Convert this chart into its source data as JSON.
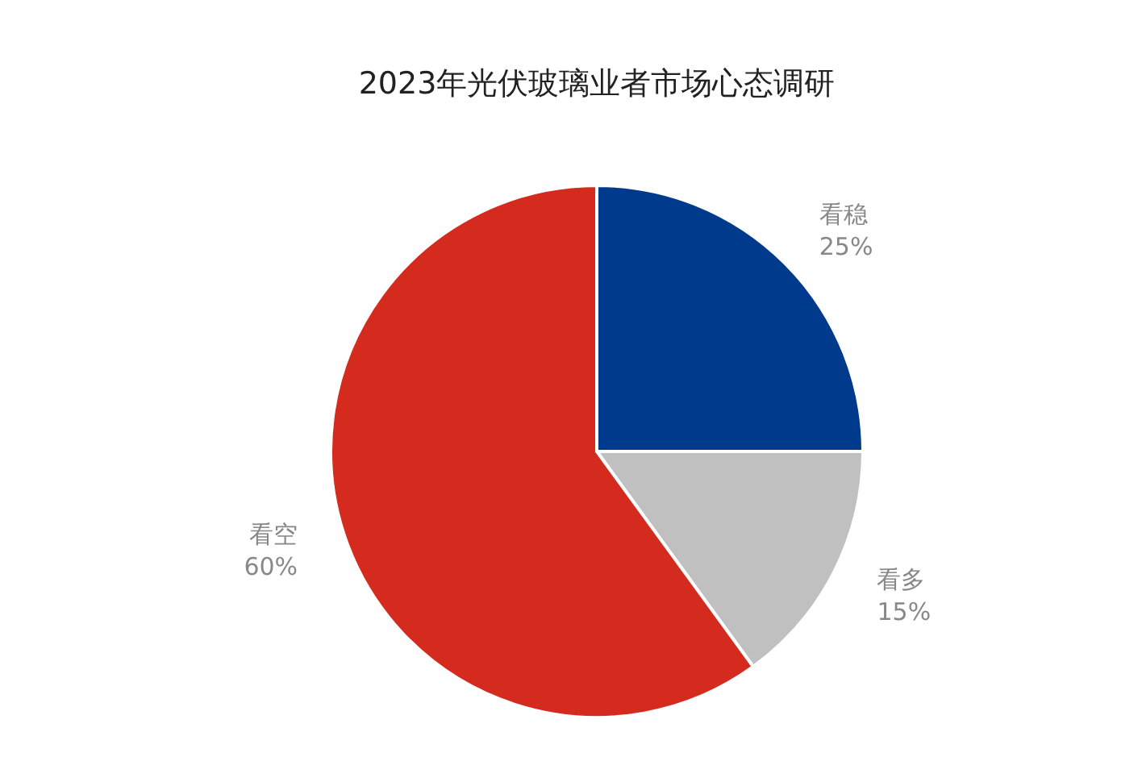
{
  "chart_data": {
    "type": "pie",
    "title": "2023年光伏玻璃业者市场心态调研",
    "categories": [
      "看稳",
      "看多",
      "看空"
    ],
    "values": [
      25,
      15,
      60
    ],
    "value_labels": [
      "25%",
      "15%",
      "60%"
    ],
    "colors": [
      "#003a8c",
      "#c0c0c0",
      "#d42b1e"
    ],
    "legend": false
  }
}
